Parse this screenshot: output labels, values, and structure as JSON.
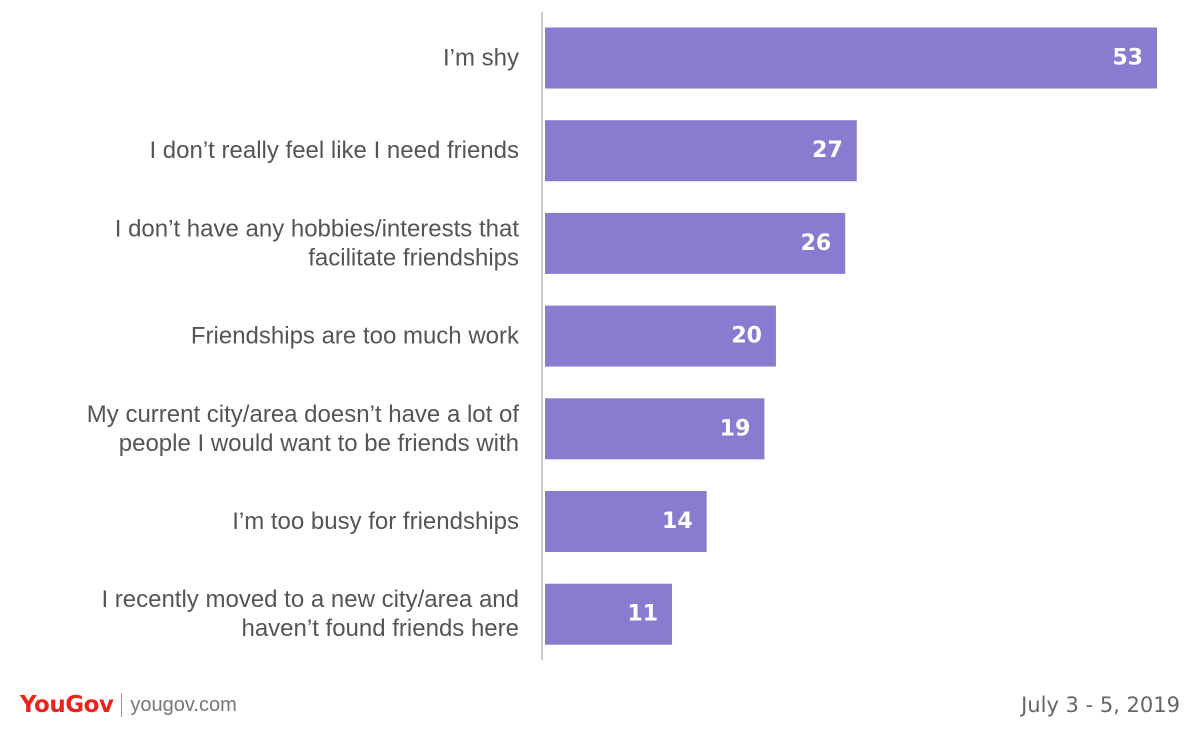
{
  "chart_data": {
    "type": "bar",
    "orientation": "horizontal",
    "categories": [
      [
        "I’m shy"
      ],
      [
        "I don’t really feel like I need friends"
      ],
      [
        "I don’t have any hobbies/interests that",
        "facilitate friendships"
      ],
      [
        "Friendships are too much work"
      ],
      [
        "My current city/area doesn’t have a lot of",
        "people I would want to be friends with"
      ],
      [
        "I’m too busy for friendships"
      ],
      [
        "I recently moved to a new city/area and",
        "haven’t found friends here"
      ]
    ],
    "values": [
      53,
      27,
      26,
      20,
      19,
      14,
      11
    ],
    "bar_color": "#8a7bd0",
    "data_label_color": "#ffffff",
    "xlim": [
      0,
      53
    ],
    "grid": false,
    "legend": "none"
  },
  "footer": {
    "brand": "YouGov",
    "brand_color": "#e8241b",
    "url": "yougov.com",
    "date": "July 3 - 5, 2019"
  }
}
